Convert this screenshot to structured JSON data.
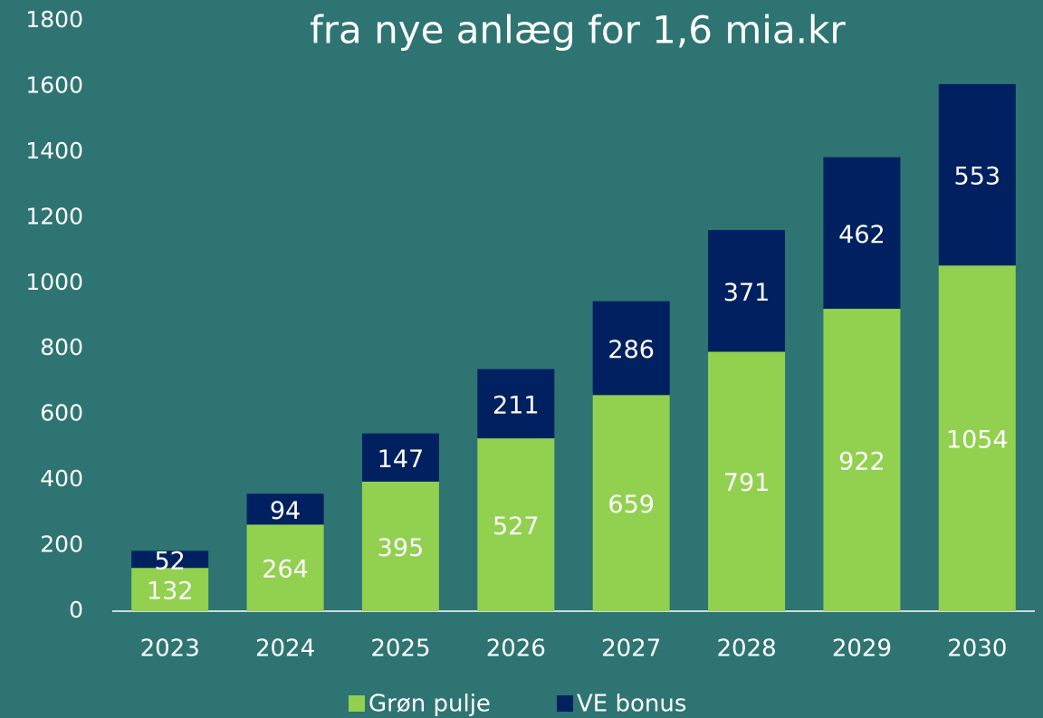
{
  "chart_data": {
    "type": "stacked_bar",
    "title": "fra nye anlæg for 1,6 mia.kr",
    "categories": [
      "2023",
      "2024",
      "2025",
      "2026",
      "2027",
      "2028",
      "2029",
      "2030"
    ],
    "series": [
      {
        "name": "Grøn pulje",
        "color": "#92d050",
        "values": [
          132,
          264,
          395,
          527,
          659,
          791,
          922,
          1054
        ]
      },
      {
        "name": "VE bonus",
        "color": "#002060",
        "values": [
          52,
          94,
          147,
          211,
          286,
          371,
          462,
          553
        ]
      }
    ],
    "ylim": [
      0,
      1800
    ],
    "yticks": [
      0,
      200,
      400,
      600,
      800,
      1000,
      1200,
      1400,
      1600,
      1800
    ],
    "legend": "bottom",
    "background": "#2e7472"
  }
}
